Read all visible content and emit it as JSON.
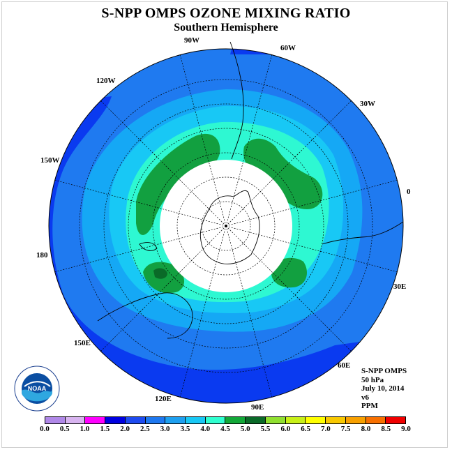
{
  "title": "S-NPP OMPS OZONE MIXING RATIO",
  "subtitle": "Southern Hemisphere",
  "longitude_labels": [
    {
      "text": "90W",
      "name": "label-90w"
    },
    {
      "text": "60W",
      "name": "label-60w"
    },
    {
      "text": "120W",
      "name": "label-120w"
    },
    {
      "text": "30W",
      "name": "label-30w"
    },
    {
      "text": "150W",
      "name": "label-150w"
    },
    {
      "text": "0",
      "name": "label-0"
    },
    {
      "text": "180",
      "name": "label-180"
    },
    {
      "text": "30E",
      "name": "label-30e"
    },
    {
      "text": "150E",
      "name": "label-150e"
    },
    {
      "text": "60E",
      "name": "label-60e"
    },
    {
      "text": "120E",
      "name": "label-120e"
    },
    {
      "text": "90E",
      "name": "label-90e"
    }
  ],
  "info": {
    "instrument": "S-NPP OMPS",
    "level": "50 hPa",
    "date": "July 10, 2014",
    "version": "v6",
    "units": "PPM"
  },
  "logo_text": "NOAA",
  "colorbar": {
    "ticks": [
      "0.0",
      "0.5",
      "1.0",
      "1.5",
      "2.0",
      "2.5",
      "3.0",
      "3.5",
      "4.0",
      "4.5",
      "5.0",
      "5.5",
      "6.0",
      "6.5",
      "7.0",
      "7.5",
      "8.0",
      "8.5",
      "9.0"
    ],
    "colors": [
      "#b088e8",
      "#d8b4f0",
      "#ff00ff",
      "#0000e0",
      "#1e4bf0",
      "#1e78f0",
      "#1ea0f0",
      "#18c8f5",
      "#30ffd0",
      "#12a838",
      "#0a6a28",
      "#90e030",
      "#c8f018",
      "#ffff00",
      "#f8c800",
      "#f8a000",
      "#f87000",
      "#f00000",
      "#905030"
    ]
  },
  "colors": {
    "background_field": "#1f7af0",
    "outer_field": "#0a3af0",
    "mid_field": "#15a8f5",
    "inner_field": "#2ef8d2",
    "max_field": "#12a040",
    "polar_night": "#ffffff"
  }
}
